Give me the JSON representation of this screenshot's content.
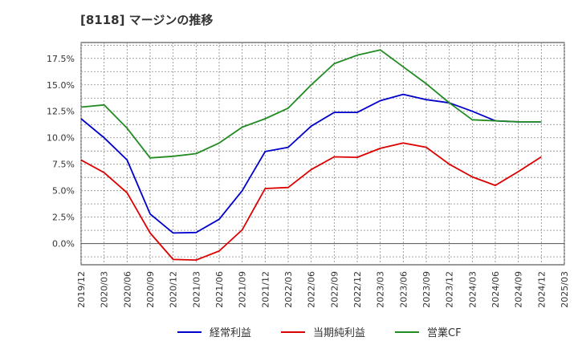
{
  "chart_data": {
    "type": "line",
    "title": "[8118]  マージンの推移",
    "x": [
      "2019/12",
      "2020/03",
      "2020/06",
      "2020/09",
      "2020/12",
      "2021/03",
      "2021/06",
      "2021/09",
      "2021/12",
      "2022/03",
      "2022/06",
      "2022/09",
      "2022/12",
      "2023/03",
      "2023/06",
      "2023/09",
      "2023/12",
      "2024/03",
      "2024/06",
      "2024/09",
      "2024/12"
    ],
    "x_ticks": [
      "2019/12",
      "2020/03",
      "2020/06",
      "2020/09",
      "2020/12",
      "2021/03",
      "2021/06",
      "2021/09",
      "2021/12",
      "2022/03",
      "2022/06",
      "2022/09",
      "2022/12",
      "2023/03",
      "2023/06",
      "2023/09",
      "2023/12",
      "2024/03",
      "2024/06",
      "2024/09",
      "2024/12",
      "2025/03"
    ],
    "y_ticks": [
      0.0,
      2.5,
      5.0,
      7.5,
      10.0,
      12.5,
      15.0,
      17.5
    ],
    "y_tick_labels": [
      "0.0%",
      "2.5%",
      "5.0%",
      "7.5%",
      "10.0%",
      "12.5%",
      "15.0%",
      "17.5%"
    ],
    "ylim": [
      -2.0,
      19.0
    ],
    "grid": true,
    "legend_position": "bottom",
    "series": [
      {
        "name": "経常利益",
        "color": "#0000cc",
        "values": [
          11.8,
          10.0,
          7.9,
          2.8,
          1.0,
          1.05,
          2.3,
          5.0,
          8.7,
          9.1,
          11.1,
          12.4,
          12.4,
          13.5,
          14.1,
          13.6,
          13.3,
          12.5,
          11.6,
          11.5,
          11.5
        ]
      },
      {
        "name": "当期純利益",
        "color": "#dd0000",
        "values": [
          7.9,
          6.7,
          4.8,
          1.0,
          -1.5,
          -1.55,
          -0.7,
          1.3,
          5.2,
          5.3,
          7.0,
          8.2,
          8.15,
          9.0,
          9.5,
          9.1,
          7.5,
          6.3,
          5.5,
          6.8,
          8.2
        ]
      },
      {
        "name": "営業CF",
        "color": "#228b22",
        "values": [
          12.9,
          13.1,
          10.9,
          8.1,
          8.25,
          8.5,
          9.5,
          11.0,
          11.8,
          12.8,
          15.0,
          17.0,
          17.8,
          18.3,
          16.7,
          15.1,
          13.3,
          11.7,
          11.6,
          11.5,
          11.5
        ]
      }
    ]
  }
}
